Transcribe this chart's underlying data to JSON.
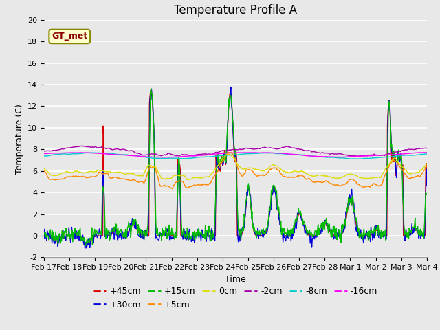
{
  "title": "Temperature Profile A",
  "xlabel": "Time",
  "ylabel": "Temperature (C)",
  "ylim": [
    -2,
    20
  ],
  "xlim": [
    0,
    15
  ],
  "xtick_labels": [
    "Feb 17",
    "Feb 18",
    "Feb 19",
    "Feb 20",
    "Feb 21",
    "Feb 22",
    "Feb 23",
    "Feb 24",
    "Feb 25",
    "Feb 26",
    "Feb 27",
    "Feb 28",
    "Mar 1",
    "Mar 2",
    "Mar 3",
    "Mar 4"
  ],
  "series": [
    {
      "label": "+45cm",
      "color": "#dd0000",
      "lw": 1.0
    },
    {
      "label": "+30cm",
      "color": "#0000dd",
      "lw": 1.0
    },
    {
      "label": "+15cm",
      "color": "#00bb00",
      "lw": 1.0
    },
    {
      "label": "+5cm",
      "color": "#ff8800",
      "lw": 1.0
    },
    {
      "label": "0cm",
      "color": "#dddd00",
      "lw": 1.0
    },
    {
      "label": "-2cm",
      "color": "#aa00aa",
      "lw": 1.0
    },
    {
      "label": "-8cm",
      "color": "#00cccc",
      "lw": 1.0
    },
    {
      "label": "-16cm",
      "color": "#ff00ff",
      "lw": 1.0
    }
  ],
  "annotation_text": "GT_met",
  "plot_bg_color": "#e8e8e8",
  "grid_color": "#ffffff",
  "title_fontsize": 12,
  "axis_fontsize": 9,
  "legend_fontsize": 9,
  "tick_fontsize": 8
}
